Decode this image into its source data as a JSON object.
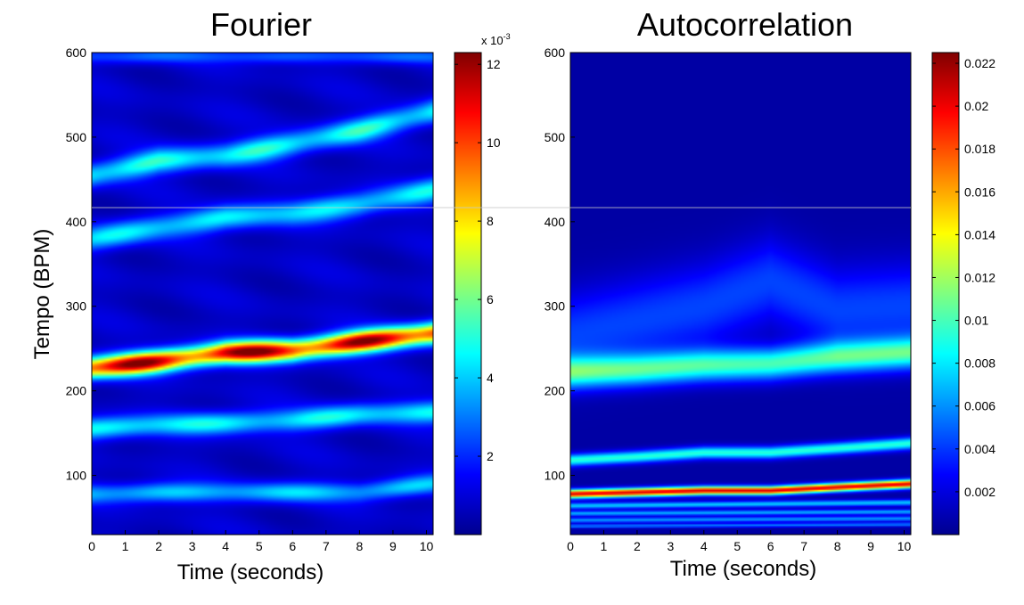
{
  "chart_data": [
    {
      "type": "heatmap",
      "title": "Fourier",
      "xlabel": "Time (seconds)",
      "ylabel": "Tempo (BPM)",
      "xlim": [
        0,
        10.2
      ],
      "ylim": [
        30,
        600
      ],
      "x_ticks": [
        0,
        1,
        2,
        3,
        4,
        5,
        6,
        7,
        8,
        9,
        10
      ],
      "y_ticks": [
        100,
        200,
        300,
        400,
        500,
        600
      ],
      "colorbar": {
        "range": [
          0,
          12.3
        ],
        "ticks": [
          2,
          4,
          6,
          8,
          10,
          12
        ],
        "tick_labels": [
          "2",
          "4",
          "6",
          "8",
          "10",
          "12"
        ],
        "exponent_label": "x 10",
        "exponent_power": "-3"
      },
      "colormap": "jet",
      "background_level": 1.2,
      "bands": [
        {
          "x": [
            0,
            2,
            4,
            6,
            8,
            10.2
          ],
          "y": [
            78,
            80,
            80,
            80,
            80,
            90
          ],
          "width": 8,
          "intensity": 3.5
        },
        {
          "x": [
            0,
            2,
            4,
            6,
            8,
            10.2
          ],
          "y": [
            155,
            160,
            162,
            165,
            172,
            175
          ],
          "width": 9,
          "intensity": 4.2
        },
        {
          "x": [
            0,
            2,
            4,
            6,
            8,
            10.2
          ],
          "y": [
            227,
            235,
            245,
            248,
            258,
            268
          ],
          "width": 9,
          "intensity": 11.8
        },
        {
          "x": [
            0,
            2,
            4,
            6,
            8,
            10.2
          ],
          "y": [
            380,
            393,
            405,
            410,
            420,
            438
          ],
          "width": 10,
          "intensity": 4.0
        },
        {
          "x": [
            0,
            2,
            4,
            6,
            8,
            10.2
          ],
          "y": [
            455,
            472,
            478,
            492,
            508,
            530
          ],
          "width": 10,
          "intensity": 4.5
        },
        {
          "x": [
            0,
            1,
            2,
            10.2
          ],
          "y": [
            595,
            595,
            596,
            595
          ],
          "width": 6,
          "intensity": 2.0
        }
      ]
    },
    {
      "type": "heatmap",
      "title": "Autocorrelation",
      "xlabel": "Time (seconds)",
      "ylabel": "",
      "xlim": [
        0,
        10.2
      ],
      "ylim": [
        30,
        600
      ],
      "x_ticks": [
        0,
        1,
        2,
        3,
        4,
        5,
        6,
        7,
        8,
        9,
        10
      ],
      "y_ticks": [
        100,
        200,
        300,
        400,
        500,
        600
      ],
      "colorbar": {
        "range": [
          0,
          0.0225
        ],
        "ticks": [
          0.002,
          0.004,
          0.006,
          0.008,
          0.01,
          0.012,
          0.014,
          0.016,
          0.018,
          0.02,
          0.022
        ],
        "tick_labels": [
          "0.002",
          "0.004",
          "0.006",
          "0.008",
          "0.01",
          "0.012",
          "0.014",
          "0.016",
          "0.018",
          "0.02",
          "0.022"
        ],
        "exponent_label": "",
        "exponent_power": ""
      },
      "colormap": "jet",
      "background_level": 0.0008,
      "bands": [
        {
          "x": [
            0,
            4,
            6,
            8,
            10.2
          ],
          "y": [
            265,
            300,
            330,
            295,
            300
          ],
          "width": 35,
          "intensity": 0.0035
        },
        {
          "x": [
            0,
            2,
            4,
            6,
            8,
            10.2
          ],
          "y": [
            222,
            225,
            230,
            232,
            240,
            245
          ],
          "width": 13,
          "intensity": 0.0092
        },
        {
          "x": [
            0,
            2,
            4,
            6,
            8,
            10.2
          ],
          "y": [
            118,
            122,
            127,
            127,
            132,
            138
          ],
          "width": 5,
          "intensity": 0.0085
        },
        {
          "x": [
            0,
            2,
            4,
            6,
            8,
            10.2
          ],
          "y": [
            78,
            80,
            82,
            82,
            86,
            90
          ],
          "width": 3.5,
          "intensity": 0.0195
        },
        {
          "x": [
            0,
            10.2
          ],
          "y": [
            64,
            68
          ],
          "width": 2.5,
          "intensity": 0.0065
        },
        {
          "x": [
            0,
            10.2
          ],
          "y": [
            55,
            57
          ],
          "width": 2,
          "intensity": 0.006
        },
        {
          "x": [
            0,
            10.2
          ],
          "y": [
            47,
            49
          ],
          "width": 2,
          "intensity": 0.0055
        },
        {
          "x": [
            0,
            10.2
          ],
          "y": [
            40,
            42
          ],
          "width": 1.5,
          "intensity": 0.005
        }
      ]
    }
  ]
}
